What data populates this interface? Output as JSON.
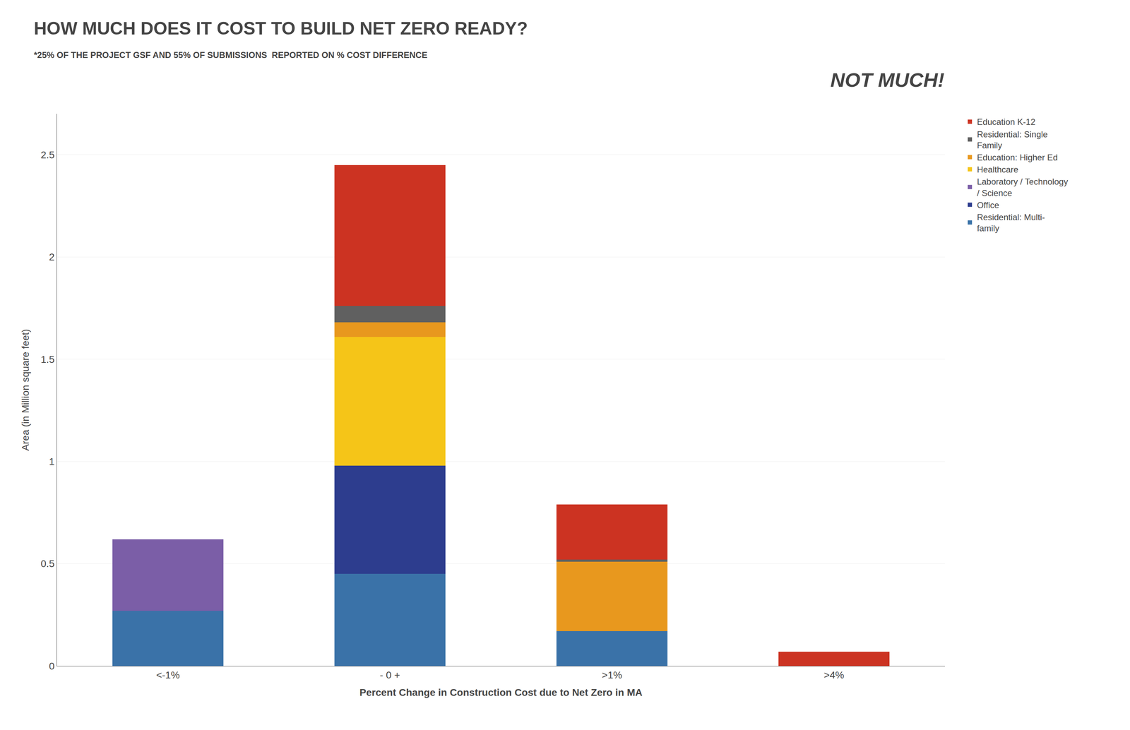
{
  "chart_data": {
    "type": "bar",
    "stacked": true,
    "title": "HOW MUCH DOES IT COST TO BUILD NET ZERO READY?",
    "subtitle": "*25% OF THE PROJECT GSF AND 55% OF SUBMISSIONS  REPORTED ON % COST DIFFERENCE",
    "annotations": [
      "NOT MUCH!"
    ],
    "x_label": "Percent Change in Construction Cost due to Net Zero in MA",
    "y_label": "Area (in Million square feet)",
    "categories": [
      "<-1%",
      "- 0 +",
      ">1%",
      ">4%"
    ],
    "series": [
      {
        "name": "Residential: Multi-\nfamily",
        "color": "#3A72A8",
        "values": [
          0.27,
          0.45,
          0.17,
          0.0
        ]
      },
      {
        "name": "Office",
        "color": "#2D3D8E",
        "values": [
          0.0,
          0.53,
          0.0,
          0.0
        ]
      },
      {
        "name": "Laboratory / Technology\n/ Science",
        "color": "#7B5EA7",
        "values": [
          0.35,
          0.0,
          0.0,
          0.0
        ]
      },
      {
        "name": "Healthcare",
        "color": "#F5C518",
        "values": [
          0.0,
          0.63,
          0.0,
          0.0
        ]
      },
      {
        "name": "Education: Higher Ed",
        "color": "#E8981E",
        "values": [
          0.0,
          0.07,
          0.34,
          0.0
        ]
      },
      {
        "name": "Residential: Single\nFamily",
        "color": "#606060",
        "values": [
          0.0,
          0.08,
          0.01,
          0.0
        ]
      },
      {
        "name": "Education K-12",
        "color": "#CC3322",
        "values": [
          0.0,
          0.69,
          0.27,
          0.07
        ]
      }
    ],
    "ylim": [
      0,
      2.7
    ],
    "yticks": [
      0,
      0.5,
      1,
      1.5,
      2,
      2.5
    ],
    "grid": true,
    "legend": "right"
  }
}
